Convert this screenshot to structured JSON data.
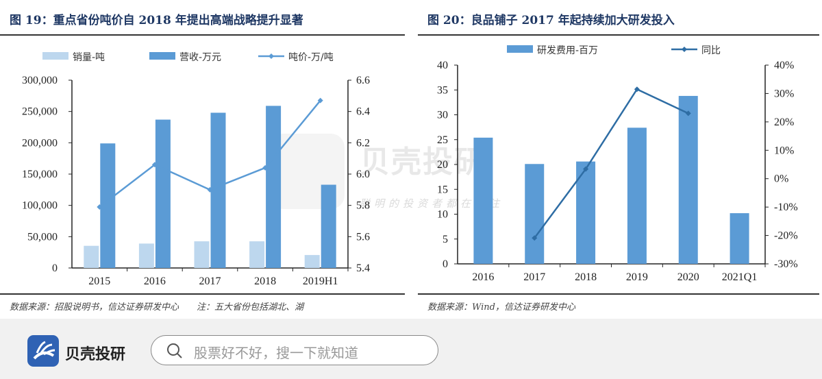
{
  "chart_data": [
    {
      "type": "bar+line",
      "title": "图 19：重点省份吨价自 2018 年提出高端战略提升显著",
      "categories": [
        "2015",
        "2016",
        "2017",
        "2018",
        "2019H1"
      ],
      "series": [
        {
          "name": "销量-吨",
          "type": "bar",
          "axis": "left",
          "color": "#bdd7ee",
          "values": [
            35400,
            39000,
            42600,
            42600,
            20700
          ]
        },
        {
          "name": "营收-万元",
          "type": "bar",
          "axis": "left",
          "color": "#5b9bd5",
          "values": [
            199000,
            237000,
            248000,
            259000,
            133000
          ]
        },
        {
          "name": "吨价-万/吨",
          "type": "line",
          "axis": "right",
          "color": "#5b9bd5",
          "values": [
            5.79,
            6.06,
            5.9,
            6.04,
            6.47
          ]
        }
      ],
      "y_left": {
        "range": [
          0,
          300000
        ],
        "ticks": [
          "0",
          "50,000",
          "100,000",
          "150,000",
          "200,000",
          "250,000",
          "300,000"
        ]
      },
      "y_right": {
        "range": [
          5.4,
          6.6
        ],
        "ticks": [
          "5.4",
          "5.6",
          "5.8",
          "6.0",
          "6.2",
          "6.4",
          "6.6"
        ]
      },
      "legend": "top",
      "grid": false,
      "source": "数据来源：招股说明书，信达证券研发中心　　注：五大省份包括湖北、湖"
    },
    {
      "type": "bar+line",
      "title": "图 20：良品铺子 2017 年起持续加大研发投入",
      "categories": [
        "2016",
        "2017",
        "2018",
        "2019",
        "2020",
        "2021Q1"
      ],
      "series": [
        {
          "name": "研发费用-百万",
          "type": "bar",
          "axis": "left",
          "color": "#5b9bd5",
          "values": [
            25.4,
            20.1,
            20.6,
            27.4,
            33.8,
            10.2
          ]
        },
        {
          "name": "同比",
          "type": "line",
          "axis": "right",
          "color": "#2e6da4",
          "values": [
            null,
            -20.9,
            3.4,
            31.5,
            23.0,
            null
          ]
        }
      ],
      "y_left": {
        "range": [
          0,
          40
        ],
        "ticks": [
          "0",
          "5",
          "10",
          "15",
          "20",
          "25",
          "30",
          "35",
          "40"
        ]
      },
      "y_right": {
        "range": [
          -30,
          40
        ],
        "ticks": [
          "-30%",
          "-20%",
          "-10%",
          "0%",
          "10%",
          "20%",
          "30%",
          "40%"
        ]
      },
      "legend": "top",
      "grid": false,
      "source": "数据来源：Wind，信达证券研发中心"
    }
  ],
  "watermark": {
    "brand": "贝壳投研",
    "slogan": "聪明的投资者都在关注"
  },
  "footer": {
    "brand": "贝壳投研",
    "search_placeholder": "股票好不好，搜一下就知道"
  }
}
